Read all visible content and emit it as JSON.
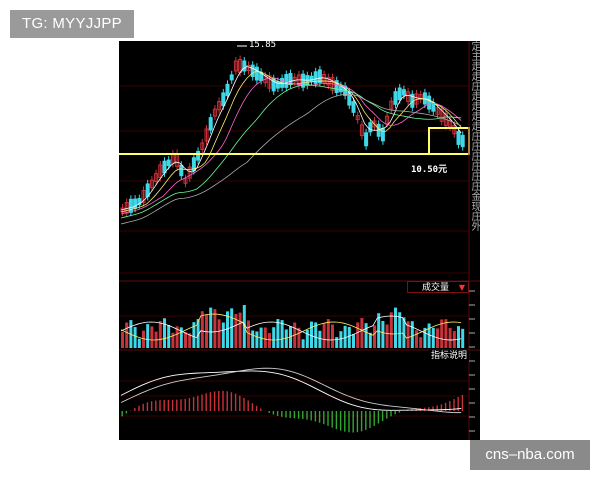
{
  "watermark_top": "TG: MYYJJPP",
  "watermark_bottom": "cns–nba.com",
  "chart": {
    "high_label": "15.85",
    "price_line_label": "10.50元",
    "volume_label": "成交量",
    "indicator_label": "指标说明",
    "side_text": "定主走走庄走走走走庄庄庄庄庄庄金现庄外",
    "colors": {
      "up": "#c8323a",
      "down": "#3fd8e8",
      "support_line": "#ffff66",
      "grid": "#3a0000",
      "macd_pos": "#c8323a",
      "macd_neg": "#2fa82f"
    }
  }
}
